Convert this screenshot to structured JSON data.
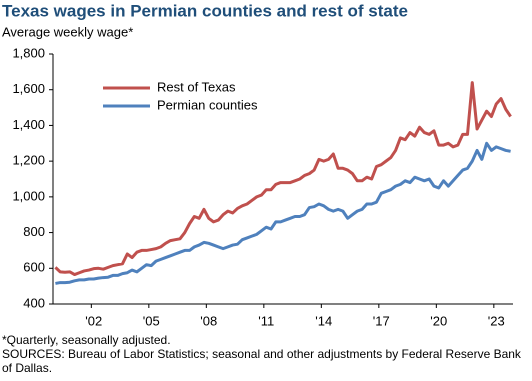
{
  "chart_data": {
    "type": "line",
    "title": "Texas wages in Permian counties and rest of state",
    "subtitle": "Average  weekly wage*",
    "notes": [
      "*Quarterly,  seasonally adjusted.",
      "SOURCES: Bureau of Labor Statistics; seasonal and other adjustments by Federal Reserve Bank of Dallas."
    ],
    "categories": [
      null,
      null,
      null,
      null,
      null,
      null,
      null,
      null,
      "'02",
      null,
      null,
      null,
      null,
      null,
      null,
      null,
      null,
      null,
      null,
      null,
      "'05",
      null,
      null,
      null,
      null,
      null,
      null,
      null,
      null,
      null,
      null,
      null,
      "'08",
      null,
      null,
      null,
      null,
      null,
      null,
      null,
      null,
      null,
      null,
      null,
      "'11",
      null,
      null,
      null,
      null,
      null,
      null,
      null,
      null,
      null,
      null,
      null,
      "'14",
      null,
      null,
      null,
      null,
      null,
      null,
      null,
      null,
      null,
      null,
      null,
      "'17",
      null,
      null,
      null,
      null,
      null,
      null,
      null,
      null,
      null,
      null,
      null,
      "'20",
      null,
      null,
      null,
      null,
      null,
      null,
      null,
      null,
      null,
      null,
      null,
      "'23",
      null,
      null,
      null
    ],
    "series": [
      {
        "name": "Rest of Texas",
        "color": "#c0504d",
        "values": [
          605,
          580,
          578,
          580,
          565,
          575,
          585,
          590,
          598,
          600,
          595,
          605,
          615,
          620,
          625,
          680,
          660,
          690,
          700,
          700,
          705,
          710,
          720,
          740,
          755,
          760,
          765,
          800,
          850,
          890,
          880,
          930,
          880,
          860,
          870,
          900,
          920,
          910,
          935,
          950,
          960,
          980,
          1000,
          1010,
          1040,
          1040,
          1070,
          1080,
          1080,
          1080,
          1090,
          1100,
          1120,
          1130,
          1150,
          1210,
          1200,
          1210,
          1240,
          1160,
          1160,
          1150,
          1130,
          1090,
          1090,
          1110,
          1100,
          1170,
          1180,
          1200,
          1220,
          1260,
          1330,
          1320,
          1360,
          1340,
          1390,
          1360,
          1350,
          1370,
          1290,
          1290,
          1300,
          1280,
          1290,
          1350,
          1350,
          1640,
          1380,
          1430,
          1480,
          1450,
          1520,
          1550,
          1490,
          1450
        ]
      },
      {
        "name": "Permian counties",
        "color": "#4f81bd",
        "values": [
          515,
          520,
          520,
          522,
          530,
          535,
          535,
          540,
          540,
          545,
          548,
          550,
          560,
          560,
          570,
          575,
          590,
          580,
          600,
          620,
          615,
          640,
          650,
          660,
          670,
          680,
          690,
          700,
          700,
          720,
          730,
          745,
          740,
          730,
          720,
          710,
          720,
          730,
          735,
          760,
          770,
          780,
          790,
          810,
          830,
          820,
          860,
          860,
          870,
          880,
          890,
          890,
          900,
          940,
          945,
          960,
          950,
          930,
          920,
          930,
          920,
          880,
          900,
          920,
          930,
          960,
          960,
          970,
          1020,
          1030,
          1040,
          1060,
          1070,
          1090,
          1080,
          1110,
          1100,
          1090,
          1100,
          1060,
          1050,
          1090,
          1060,
          1090,
          1120,
          1150,
          1160,
          1200,
          1260,
          1210,
          1300,
          1260,
          1280,
          1270,
          1260,
          1255
        ]
      }
    ],
    "ylim": [
      400,
      1800
    ],
    "yticks": [
      400,
      600,
      800,
      {
        "value": 1000,
        "label": "1,000"
      },
      {
        "value": 1200,
        "label": "1,200"
      },
      {
        "value": 1400,
        "label": "1,400"
      },
      {
        "value": 1600,
        "label": "1,600"
      },
      {
        "value": 1800,
        "label": "1,800"
      }
    ],
    "grid": false
  }
}
